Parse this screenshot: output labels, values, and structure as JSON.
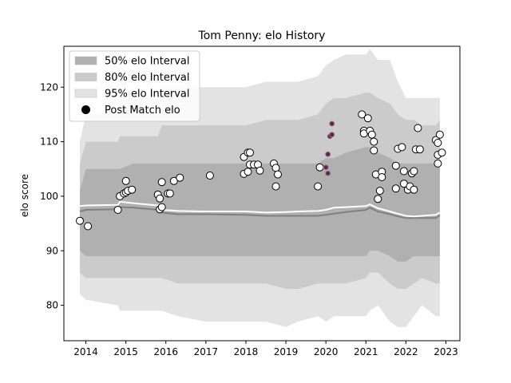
{
  "chart_data": {
    "type": "scatter",
    "title": "Tom Penny: elo History",
    "xlabel": "",
    "ylabel": "elo score",
    "xlim": [
      2013.45,
      2023.35
    ],
    "ylim": [
      73.5,
      127.5
    ],
    "x_ticks": [
      2014,
      2015,
      2016,
      2017,
      2018,
      2019,
      2020,
      2021,
      2022,
      2023
    ],
    "y_ticks": [
      80,
      90,
      100,
      110,
      120
    ],
    "grid": false,
    "legend_position": "top-left",
    "legend": [
      {
        "label": "50% elo Interval",
        "kind": "band",
        "color": "#b0b0b0"
      },
      {
        "label": "80% elo Interval",
        "kind": "band",
        "color": "#cbcbcb"
      },
      {
        "label": "95% elo Interval",
        "kind": "band",
        "color": "#e3e3e3"
      },
      {
        "label": "Post Match elo",
        "kind": "marker",
        "color": "#000000"
      }
    ],
    "colors": {
      "band_95": "#e3e3e3",
      "band_80": "#cbcbcb",
      "band_50": "#b0b0b0",
      "mean_line": "#808080",
      "post_match_line": "#ffffff",
      "point_edge": "#000000",
      "point_fill": "#ffffff",
      "highlight_fill": "#6b1f4a"
    },
    "bands": {
      "x": [
        2013.85,
        2014.0,
        2014.8,
        2014.85,
        2015.2,
        2015.8,
        2015.9,
        2016.3,
        2017.0,
        2018.0,
        2018.5,
        2019.0,
        2019.3,
        2019.8,
        2020.0,
        2020.2,
        2020.5,
        2021.0,
        2021.1,
        2021.3,
        2021.6,
        2021.8,
        2022.0,
        2022.2,
        2022.4,
        2022.75,
        2022.85
      ],
      "p95_high": [
        110,
        115,
        115,
        118,
        118,
        118,
        120,
        120,
        120,
        120,
        121,
        121,
        121,
        122,
        124,
        125,
        126,
        126,
        127,
        125,
        125,
        121,
        118,
        118,
        118,
        118,
        118
      ],
      "p95_low": [
        82,
        81,
        80,
        79,
        79,
        79,
        79,
        78,
        77,
        77,
        77,
        76,
        77,
        78,
        77,
        78,
        78,
        78,
        79,
        80,
        77,
        76,
        76,
        78,
        80,
        78,
        78
      ],
      "p80_high": [
        106,
        110,
        110,
        111,
        111,
        111,
        113,
        113,
        113,
        113,
        114,
        114,
        114,
        115,
        117,
        118,
        118,
        119,
        119,
        118,
        117,
        115,
        114,
        114,
        113,
        113,
        114
      ],
      "p80_low": [
        86,
        85,
        85,
        85,
        85,
        85,
        85,
        84,
        84,
        84,
        84,
        83,
        83,
        84,
        84,
        84,
        84,
        85,
        86,
        86,
        84,
        83,
        83,
        84,
        85,
        84,
        84
      ],
      "p50_high": [
        101,
        105,
        105,
        105,
        106,
        106,
        106,
        106,
        106,
        106,
        106,
        106,
        106,
        106,
        107,
        107,
        108,
        109,
        109,
        108,
        107,
        106,
        106,
        106,
        106,
        106,
        106
      ],
      "p50_low": [
        90,
        89,
        89,
        89,
        89,
        89,
        89,
        89,
        89,
        89,
        89,
        89,
        89,
        89,
        89,
        89,
        89,
        89,
        90,
        90,
        89,
        88,
        88,
        89,
        89,
        89,
        89
      ],
      "mean": [
        97.2,
        97.5,
        97.6,
        98.0,
        97.9,
        97.5,
        97.0,
        96.7,
        96.7,
        96.6,
        96.4,
        96.4,
        96.4,
        96.4,
        96.6,
        96.8,
        97.1,
        97.5,
        97.9,
        97.2,
        96.7,
        96.3,
        96.0,
        96.0,
        96.0,
        96.0,
        96.5
      ],
      "post_line": [
        98.2,
        98.3,
        98.4,
        99.0,
        98.7,
        98.3,
        97.5,
        97.3,
        97.2,
        97.2,
        97.0,
        97.1,
        97.2,
        97.3,
        97.5,
        97.9,
        98.0,
        98.2,
        98.5,
        97.8,
        97.2,
        96.8,
        96.4,
        96.3,
        96.4,
        96.6,
        97.0
      ]
    },
    "points": [
      {
        "x": 2013.85,
        "y": 95.5
      },
      {
        "x": 2014.05,
        "y": 94.5
      },
      {
        "x": 2014.8,
        "y": 97.5
      },
      {
        "x": 2014.85,
        "y": 100.0
      },
      {
        "x": 2014.95,
        "y": 100.5
      },
      {
        "x": 2015.0,
        "y": 100.7
      },
      {
        "x": 2015.0,
        "y": 102.8
      },
      {
        "x": 2015.05,
        "y": 101.0
      },
      {
        "x": 2015.15,
        "y": 101.2
      },
      {
        "x": 2015.8,
        "y": 100.3
      },
      {
        "x": 2015.85,
        "y": 99.6
      },
      {
        "x": 2015.85,
        "y": 97.6
      },
      {
        "x": 2015.9,
        "y": 98.0
      },
      {
        "x": 2015.9,
        "y": 102.6
      },
      {
        "x": 2016.05,
        "y": 100.5
      },
      {
        "x": 2016.1,
        "y": 100.5
      },
      {
        "x": 2016.2,
        "y": 102.8
      },
      {
        "x": 2016.35,
        "y": 103.4
      },
      {
        "x": 2017.1,
        "y": 103.8
      },
      {
        "x": 2017.95,
        "y": 104.1
      },
      {
        "x": 2017.95,
        "y": 107.2
      },
      {
        "x": 2018.05,
        "y": 108.0
      },
      {
        "x": 2018.05,
        "y": 104.5
      },
      {
        "x": 2018.1,
        "y": 108.0
      },
      {
        "x": 2018.1,
        "y": 105.8
      },
      {
        "x": 2018.2,
        "y": 105.8
      },
      {
        "x": 2018.3,
        "y": 105.8
      },
      {
        "x": 2018.35,
        "y": 104.7
      },
      {
        "x": 2018.7,
        "y": 106.0
      },
      {
        "x": 2018.75,
        "y": 105.2
      },
      {
        "x": 2018.75,
        "y": 101.8
      },
      {
        "x": 2018.8,
        "y": 104.0
      },
      {
        "x": 2019.8,
        "y": 101.8
      },
      {
        "x": 2019.85,
        "y": 105.3
      },
      {
        "x": 2020.0,
        "y": 105.3,
        "highlight": true
      },
      {
        "x": 2020.05,
        "y": 104.2,
        "highlight": true
      },
      {
        "x": 2020.05,
        "y": 107.7,
        "highlight": true
      },
      {
        "x": 2020.1,
        "y": 111.0,
        "highlight": true
      },
      {
        "x": 2020.15,
        "y": 113.3,
        "highlight": true
      },
      {
        "x": 2020.15,
        "y": 111.3,
        "highlight": true
      },
      {
        "x": 2020.9,
        "y": 115.0
      },
      {
        "x": 2020.95,
        "y": 112.0
      },
      {
        "x": 2020.95,
        "y": 111.5
      },
      {
        "x": 2021.05,
        "y": 114.3
      },
      {
        "x": 2021.1,
        "y": 112.0
      },
      {
        "x": 2021.15,
        "y": 111.3
      },
      {
        "x": 2021.2,
        "y": 108.4
      },
      {
        "x": 2021.2,
        "y": 110.0
      },
      {
        "x": 2021.25,
        "y": 104.0
      },
      {
        "x": 2021.3,
        "y": 99.5
      },
      {
        "x": 2021.35,
        "y": 101.0
      },
      {
        "x": 2021.4,
        "y": 104.5
      },
      {
        "x": 2021.4,
        "y": 103.5
      },
      {
        "x": 2021.75,
        "y": 105.6
      },
      {
        "x": 2021.75,
        "y": 101.4
      },
      {
        "x": 2021.8,
        "y": 108.7
      },
      {
        "x": 2021.9,
        "y": 109.0
      },
      {
        "x": 2021.95,
        "y": 104.6
      },
      {
        "x": 2021.95,
        "y": 102.3
      },
      {
        "x": 2022.05,
        "y": 101.2
      },
      {
        "x": 2022.1,
        "y": 101.8
      },
      {
        "x": 2022.15,
        "y": 104.2
      },
      {
        "x": 2022.2,
        "y": 104.6
      },
      {
        "x": 2022.2,
        "y": 101.2
      },
      {
        "x": 2022.25,
        "y": 108.6
      },
      {
        "x": 2022.3,
        "y": 112.5
      },
      {
        "x": 2022.35,
        "y": 108.6
      },
      {
        "x": 2022.75,
        "y": 110.3
      },
      {
        "x": 2022.8,
        "y": 109.8
      },
      {
        "x": 2022.8,
        "y": 107.6
      },
      {
        "x": 2022.8,
        "y": 106.0
      },
      {
        "x": 2022.85,
        "y": 111.3
      },
      {
        "x": 2022.9,
        "y": 108.0
      }
    ]
  }
}
